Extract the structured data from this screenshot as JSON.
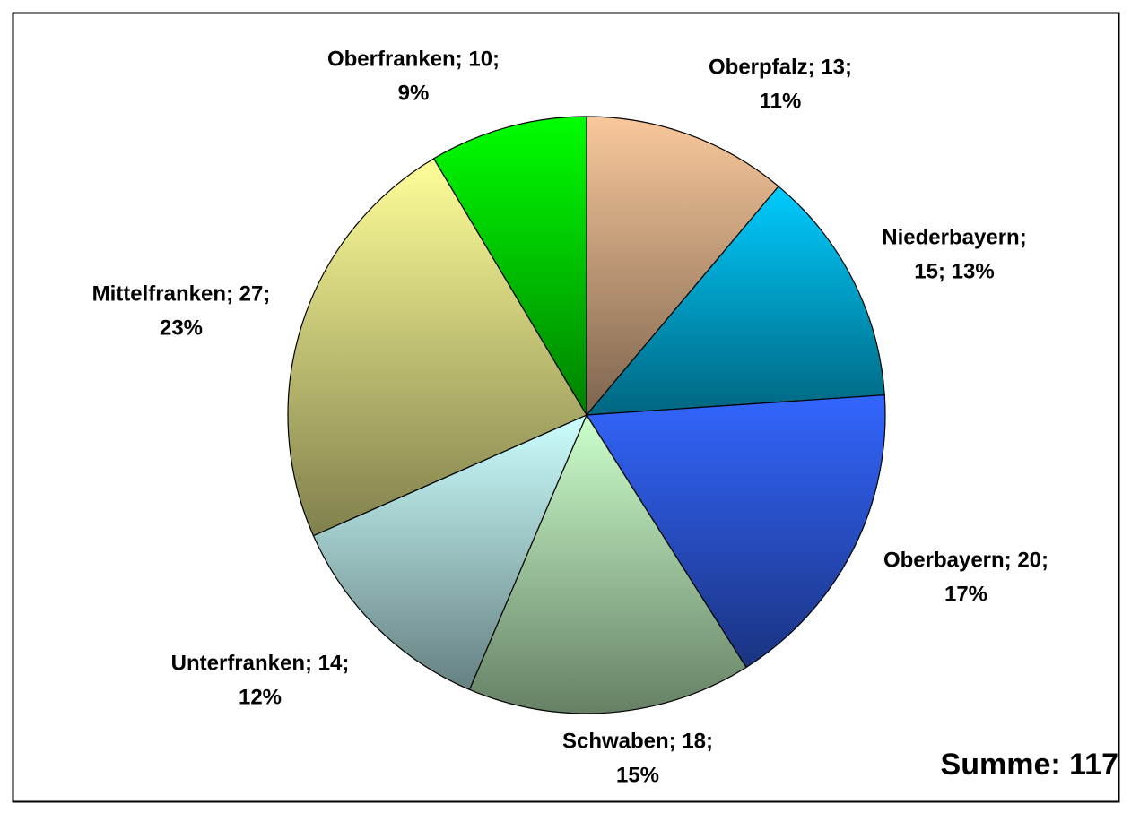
{
  "chart_data": {
    "type": "pie",
    "values": [
      13,
      15,
      20,
      18,
      14,
      27,
      10
    ],
    "value_labels": [
      [
        "Oberpfalz; 13;",
        "11%"
      ],
      [
        "Niederbayern;",
        "15; 13%"
      ],
      [
        "Oberbayern; 20;",
        "17%"
      ],
      [
        "Schwaben; 18;",
        "15%"
      ],
      [
        "Unterfranken; 14;",
        "12%"
      ],
      [
        "Mittelfranken; 27;",
        "23%"
      ],
      [
        "Oberfranken; 10;",
        "9%"
      ]
    ],
    "colors": [
      "#f9c89b",
      "#00ccff",
      "#3366ff",
      "#ccffcc",
      "#ccffff",
      "#ffff99",
      "#00ff00"
    ],
    "annotation": "Summe: 117"
  }
}
